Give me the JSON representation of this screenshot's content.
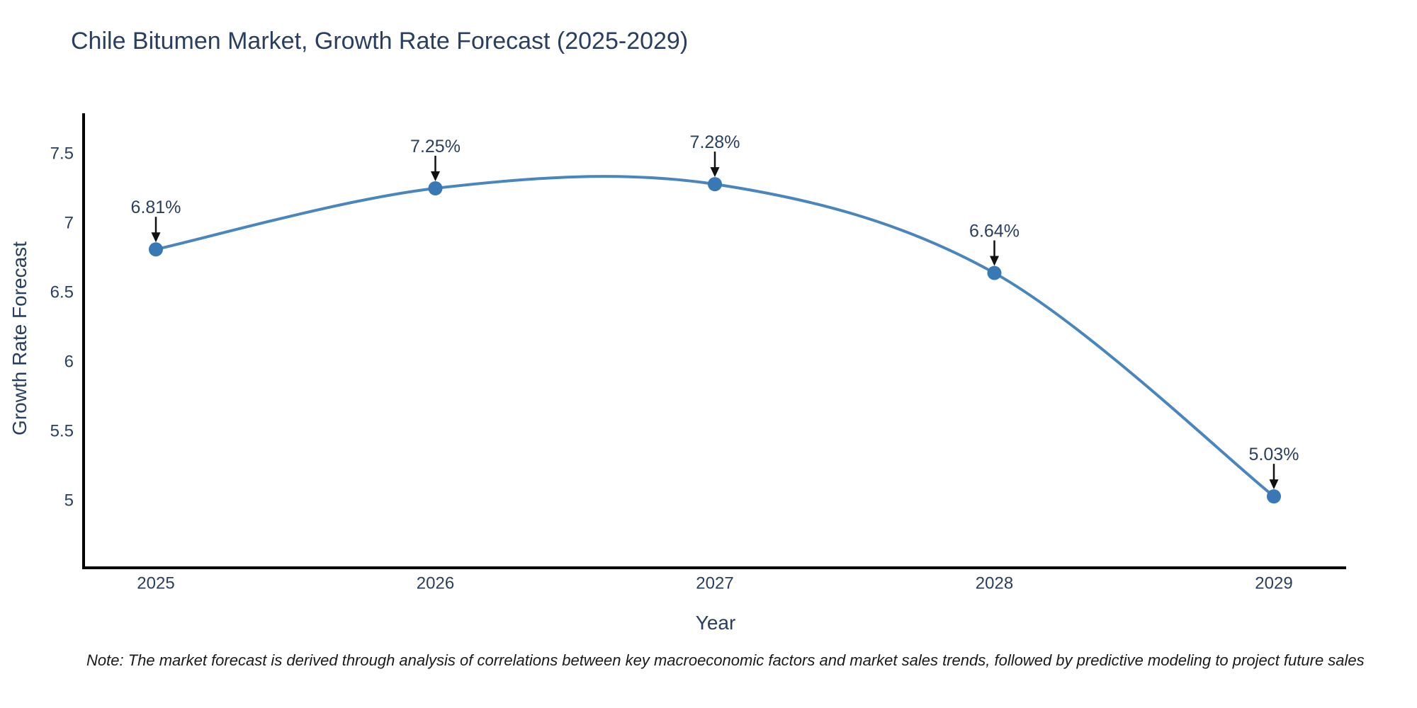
{
  "page": {
    "background": "#ffffff"
  },
  "chart_data": {
    "type": "line",
    "title": "Chile Bitumen Market, Growth Rate Forecast (2025-2029)",
    "xlabel": "Year",
    "ylabel": "Growth Rate Forecast",
    "categories": [
      "2025",
      "2026",
      "2027",
      "2028",
      "2029"
    ],
    "series": [
      {
        "name": "Growth Rate Forecast",
        "values": [
          6.81,
          7.25,
          7.28,
          6.64,
          5.03
        ],
        "labels": [
          "6.81%",
          "7.25%",
          "7.28%",
          "6.64%",
          "5.03%"
        ]
      }
    ],
    "yticks": [
      7.5,
      7.0,
      6.5,
      6.0,
      5.5,
      5.0
    ],
    "ylim": [
      4.5,
      7.8
    ],
    "line_shape": "spline",
    "grid": false,
    "legend": "none",
    "colors": {
      "line": "#4886bd",
      "marker": "#3878b4",
      "axis": "#000000",
      "text": "#2a3f5f",
      "annotation": "#2a3f5f",
      "arrow": "#111111",
      "note": "#1a1a1a"
    },
    "note": "Note: The market forecast is derived through analysis of correlations between key macroeconomic factors and market sales trends, followed by predictive modeling to project future sales"
  }
}
